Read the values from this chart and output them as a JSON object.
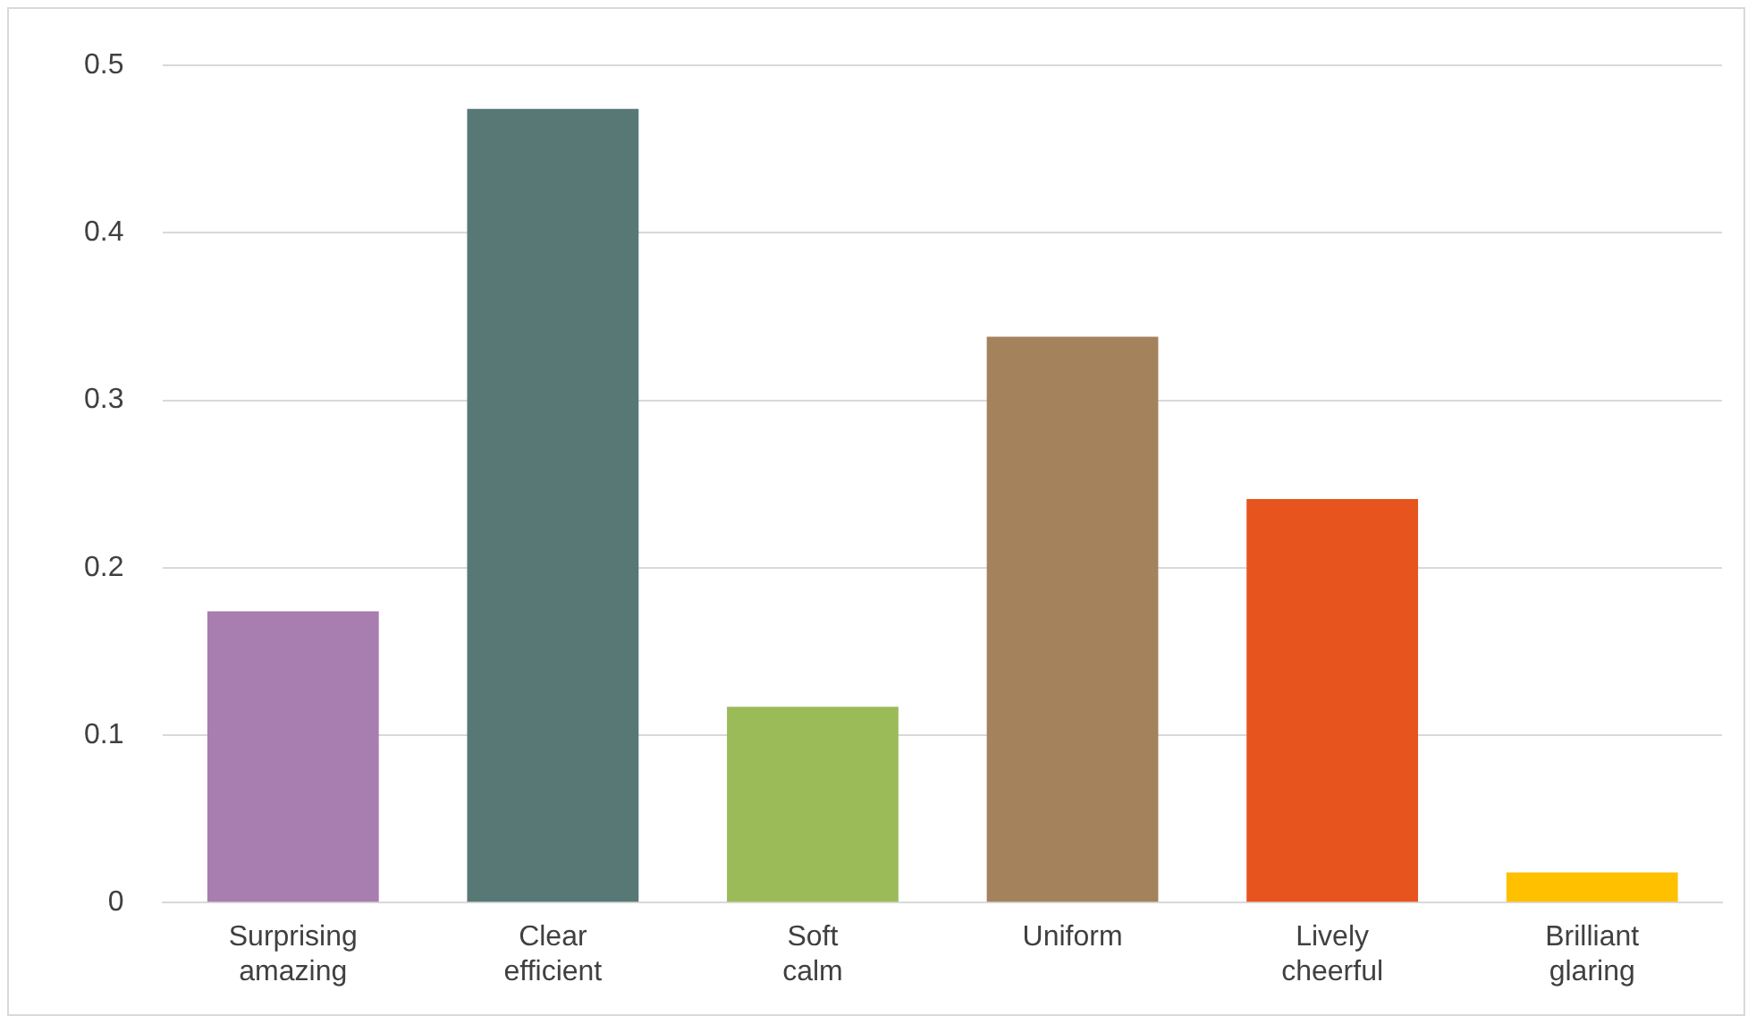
{
  "chart_data": {
    "type": "bar",
    "categories": [
      "Surprising amazing",
      "Clear efficient",
      "Soft calm",
      "Uniform",
      "Lively cheerful",
      "Brilliant glaring"
    ],
    "values": [
      0.174,
      0.474,
      0.117,
      0.338,
      0.241,
      0.018
    ],
    "colors": [
      "#a87db0",
      "#587875",
      "#9bbb59",
      "#a3825c",
      "#e8541e",
      "#ffc000"
    ],
    "ylim": [
      0,
      0.5
    ],
    "yticks": [
      0,
      0.1,
      0.2,
      0.3,
      0.4,
      0.5
    ],
    "grid": "y",
    "legend": false
  }
}
